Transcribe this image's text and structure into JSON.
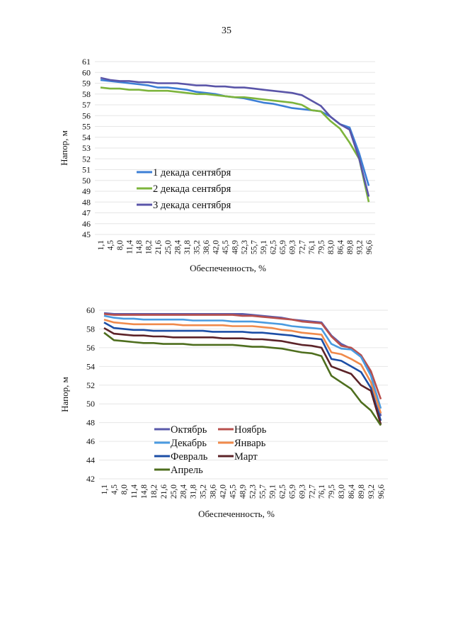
{
  "page": {
    "number": "35"
  },
  "chart_data": [
    {
      "type": "line",
      "title": "",
      "xlabel": "Обеспеченность, %",
      "ylabel": "Напор, м",
      "ylim": [
        45,
        61
      ],
      "yticks": [
        "45",
        "46",
        "47",
        "48",
        "49",
        "50",
        "51",
        "52",
        "53",
        "54",
        "55",
        "56",
        "57",
        "58",
        "59",
        "60",
        "61"
      ],
      "grid": true,
      "legend_position": "center-left",
      "x": [
        "1,1",
        "4,5",
        "8,0",
        "11,4",
        "14,8",
        "18,2",
        "21,6",
        "25,0",
        "28,4",
        "31,8",
        "35,2",
        "38,6",
        "42,0",
        "45,5",
        "48,9",
        "52,3",
        "55,7",
        "59,1",
        "62,5",
        "65,9",
        "69,3",
        "72,7",
        "76,1",
        "79,5",
        "83,0",
        "86,4",
        "89,8",
        "93,2",
        "96,6"
      ],
      "series": [
        {
          "name": "1 декада сентября",
          "color": "#3d7fd6",
          "values": [
            59.3,
            59.2,
            59.1,
            59.0,
            58.9,
            58.8,
            58.6,
            58.6,
            58.5,
            58.4,
            58.2,
            58.1,
            58.0,
            57.8,
            57.7,
            57.6,
            57.4,
            57.2,
            57.1,
            56.9,
            56.7,
            56.6,
            56.5,
            56.4,
            55.9,
            55.2,
            54.9,
            52.5,
            49.5
          ]
        },
        {
          "name": "2 декада сентября",
          "color": "#7db43c",
          "values": [
            58.6,
            58.5,
            58.5,
            58.4,
            58.4,
            58.3,
            58.3,
            58.3,
            58.2,
            58.1,
            58.0,
            58.0,
            57.9,
            57.8,
            57.7,
            57.7,
            57.6,
            57.5,
            57.4,
            57.3,
            57.2,
            57.0,
            56.5,
            56.4,
            55.5,
            54.8,
            53.5,
            52.0,
            48.0
          ]
        },
        {
          "name": "3 декада сентября",
          "color": "#5a55a8",
          "values": [
            59.5,
            59.3,
            59.2,
            59.2,
            59.1,
            59.1,
            59.0,
            59.0,
            59.0,
            58.9,
            58.8,
            58.8,
            58.7,
            58.7,
            58.6,
            58.6,
            58.5,
            58.4,
            58.3,
            58.2,
            58.1,
            57.9,
            57.4,
            56.9,
            55.9,
            55.2,
            54.7,
            52.0,
            48.5
          ]
        }
      ]
    },
    {
      "type": "line",
      "title": "",
      "xlabel": "Обеспеченность, %",
      "ylabel": "Напор, м",
      "ylim": [
        42,
        60
      ],
      "yticks": [
        "42",
        "44",
        "46",
        "48",
        "50",
        "52",
        "54",
        "56",
        "58",
        "60"
      ],
      "grid": true,
      "legend_position": "bottom-left",
      "x": [
        "1,1",
        "4,5",
        "8,0",
        "11,4",
        "14,8",
        "18,2",
        "21,6",
        "25,0",
        "28,4",
        "31,8",
        "35,2",
        "38,6",
        "42,0",
        "45,5",
        "48,9",
        "52,3",
        "55,7",
        "59,1",
        "62,5",
        "65,9",
        "69,3",
        "72,7",
        "76,1",
        "79,5",
        "83,0",
        "86,4",
        "89,8",
        "93,2",
        "96,6"
      ],
      "series": [
        {
          "name": "Октябрь",
          "color": "#5a5aaa",
          "values": [
            59.7,
            59.6,
            59.6,
            59.6,
            59.6,
            59.6,
            59.6,
            59.6,
            59.6,
            59.6,
            59.6,
            59.6,
            59.6,
            59.6,
            59.6,
            59.5,
            59.4,
            59.3,
            59.2,
            59.0,
            58.9,
            58.8,
            58.7,
            57.3,
            56.4,
            55.9,
            55.2,
            53.2,
            48.7
          ]
        },
        {
          "name": "Ноябрь",
          "color": "#b8504d",
          "values": [
            59.6,
            59.5,
            59.5,
            59.5,
            59.5,
            59.5,
            59.5,
            59.5,
            59.5,
            59.5,
            59.5,
            59.5,
            59.5,
            59.5,
            59.4,
            59.4,
            59.3,
            59.2,
            59.1,
            59.0,
            58.8,
            58.7,
            58.6,
            57.2,
            56.2,
            56.0,
            55.2,
            53.5,
            50.5
          ]
        },
        {
          "name": "Декабрь",
          "color": "#4a9be0",
          "values": [
            59.4,
            59.2,
            59.1,
            59.1,
            59.0,
            59.0,
            59.0,
            59.0,
            59.0,
            58.9,
            58.9,
            58.9,
            58.9,
            58.8,
            58.8,
            58.8,
            58.7,
            58.6,
            58.5,
            58.3,
            58.2,
            58.1,
            58.0,
            56.4,
            55.9,
            55.8,
            55.0,
            53.0,
            49.5
          ]
        },
        {
          "name": "Январь",
          "color": "#f08a4b",
          "values": [
            59.0,
            58.7,
            58.6,
            58.5,
            58.5,
            58.5,
            58.5,
            58.5,
            58.4,
            58.4,
            58.4,
            58.4,
            58.4,
            58.3,
            58.3,
            58.3,
            58.2,
            58.1,
            57.9,
            57.8,
            57.6,
            57.5,
            57.4,
            55.5,
            55.3,
            54.8,
            54.2,
            52.3,
            49.0
          ]
        },
        {
          "name": "Февраль",
          "color": "#1c4ea6",
          "values": [
            58.7,
            58.1,
            58.0,
            57.9,
            57.9,
            57.8,
            57.8,
            57.8,
            57.8,
            57.8,
            57.8,
            57.7,
            57.7,
            57.7,
            57.7,
            57.6,
            57.6,
            57.5,
            57.4,
            57.3,
            57.1,
            57.0,
            56.9,
            54.8,
            54.6,
            54.0,
            53.4,
            51.7,
            48.2
          ]
        },
        {
          "name": "Март",
          "color": "#5c2328",
          "values": [
            58.1,
            57.5,
            57.4,
            57.3,
            57.3,
            57.2,
            57.2,
            57.1,
            57.1,
            57.1,
            57.1,
            57.1,
            57.0,
            57.0,
            57.0,
            56.9,
            56.9,
            56.8,
            56.7,
            56.5,
            56.3,
            56.2,
            56.0,
            54.0,
            53.6,
            53.2,
            52.0,
            51.4,
            47.8
          ]
        },
        {
          "name": "Апрель",
          "color": "#4e6e1e",
          "values": [
            57.6,
            56.8,
            56.7,
            56.6,
            56.5,
            56.5,
            56.4,
            56.4,
            56.4,
            56.3,
            56.3,
            56.3,
            56.3,
            56.3,
            56.2,
            56.1,
            56.1,
            56.0,
            55.9,
            55.7,
            55.5,
            55.4,
            55.1,
            53.0,
            52.3,
            51.6,
            50.2,
            49.3,
            47.7
          ]
        }
      ]
    }
  ]
}
